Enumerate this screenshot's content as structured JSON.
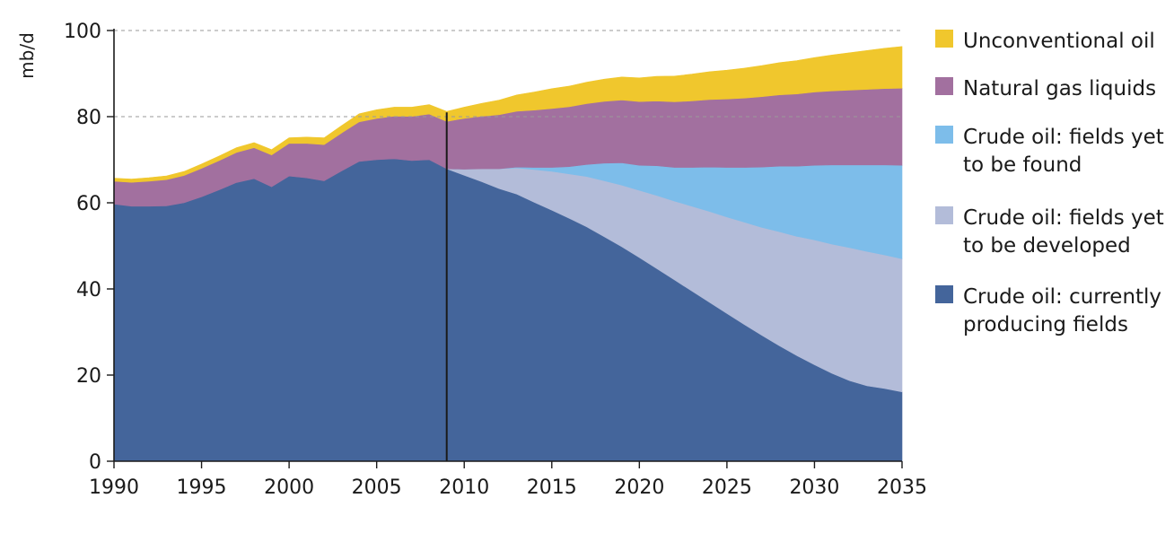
{
  "chart_data": {
    "type": "area",
    "stacked": true,
    "title": "",
    "xlabel": "",
    "ylabel": "mb/d",
    "xlim": [
      1990,
      2035
    ],
    "ylim": [
      0,
      100
    ],
    "x_ticks": [
      "1990",
      "1995",
      "2000",
      "2005",
      "2010",
      "2015",
      "2020",
      "2025",
      "2030",
      "2035"
    ],
    "y_ticks": [
      "0",
      "20",
      "40",
      "60",
      "80",
      "100"
    ],
    "gridlines_y": [
      80,
      100
    ],
    "marker_line_x": 2009,
    "legend_position": "right",
    "legend": [
      {
        "lines": [
          "Unconventional oil"
        ],
        "color": "#F0C72D"
      },
      {
        "lines": [
          "Natural gas liquids"
        ],
        "color": "#A2709F"
      },
      {
        "lines": [
          "Crude oil: fields yet",
          "to be found"
        ],
        "color": "#7DBDEA"
      },
      {
        "lines": [
          "Crude oil: fields yet",
          "to be developed"
        ],
        "color": "#B3BCD9"
      },
      {
        "lines": [
          "Crude oil: currently",
          "producing fields"
        ],
        "color": "#44659B"
      }
    ],
    "series": [
      {
        "name": "Crude oil: currently producing fields",
        "color": "#44659B",
        "points": [
          [
            1990,
            59.7
          ],
          [
            1991,
            59.2
          ],
          [
            1992,
            59.2
          ],
          [
            1993,
            59.3
          ],
          [
            1994,
            60.0
          ],
          [
            1995,
            61.4
          ],
          [
            1996,
            63.0
          ],
          [
            1997,
            64.7
          ],
          [
            1998,
            65.6
          ],
          [
            1999,
            63.7
          ],
          [
            2000,
            66.2
          ],
          [
            2001,
            65.8
          ],
          [
            2002,
            65.1
          ],
          [
            2003,
            67.4
          ],
          [
            2004,
            69.6
          ],
          [
            2005,
            70.0
          ],
          [
            2006,
            70.2
          ],
          [
            2007,
            69.8
          ],
          [
            2008,
            70.0
          ],
          [
            2009,
            67.9
          ],
          [
            2010,
            66.4
          ],
          [
            2011,
            64.9
          ],
          [
            2012,
            63.3
          ],
          [
            2013,
            62.0
          ],
          [
            2014,
            60.1
          ],
          [
            2015,
            58.3
          ],
          [
            2016,
            56.4
          ],
          [
            2017,
            54.4
          ],
          [
            2018,
            52.1
          ],
          [
            2019,
            49.8
          ],
          [
            2020,
            47.3
          ],
          [
            2021,
            44.7
          ],
          [
            2022,
            42.1
          ],
          [
            2023,
            39.5
          ],
          [
            2024,
            36.9
          ],
          [
            2025,
            34.3
          ],
          [
            2026,
            31.7
          ],
          [
            2027,
            29.2
          ],
          [
            2028,
            26.8
          ],
          [
            2029,
            24.5
          ],
          [
            2030,
            22.4
          ],
          [
            2031,
            20.4
          ],
          [
            2032,
            18.7
          ],
          [
            2033,
            17.5
          ],
          [
            2034,
            16.9
          ],
          [
            2035,
            16.1
          ]
        ]
      },
      {
        "name": "Crude oil: fields yet to be developed",
        "color": "#B3BCD9",
        "points": [
          [
            2009,
            0
          ],
          [
            2010,
            1.4
          ],
          [
            2011,
            3.0
          ],
          [
            2012,
            4.6
          ],
          [
            2013,
            6.1
          ],
          [
            2014,
            7.6
          ],
          [
            2015,
            9.0
          ],
          [
            2016,
            10.3
          ],
          [
            2017,
            11.7
          ],
          [
            2018,
            13.0
          ],
          [
            2019,
            14.3
          ],
          [
            2020,
            15.6
          ],
          [
            2021,
            17.0
          ],
          [
            2022,
            18.3
          ],
          [
            2023,
            19.7
          ],
          [
            2024,
            21.1
          ],
          [
            2025,
            22.4
          ],
          [
            2026,
            23.8
          ],
          [
            2027,
            25.1
          ],
          [
            2028,
            26.5
          ],
          [
            2029,
            27.7
          ],
          [
            2030,
            29.0
          ],
          [
            2031,
            30.0
          ],
          [
            2032,
            30.9
          ],
          [
            2033,
            31.2
          ],
          [
            2034,
            31.0
          ],
          [
            2035,
            30.9
          ]
        ]
      },
      {
        "name": "Crude oil: fields yet to be found",
        "color": "#7DBDEA",
        "points": [
          [
            2009,
            0
          ],
          [
            2012,
            0
          ],
          [
            2013,
            0.2
          ],
          [
            2014,
            0.5
          ],
          [
            2015,
            0.9
          ],
          [
            2016,
            1.7
          ],
          [
            2017,
            2.8
          ],
          [
            2018,
            4.1
          ],
          [
            2019,
            5.2
          ],
          [
            2020,
            5.8
          ],
          [
            2021,
            6.9
          ],
          [
            2022,
            7.8
          ],
          [
            2023,
            9.0
          ],
          [
            2024,
            10.3
          ],
          [
            2025,
            11.5
          ],
          [
            2026,
            12.7
          ],
          [
            2027,
            14.0
          ],
          [
            2028,
            15.2
          ],
          [
            2029,
            16.3
          ],
          [
            2030,
            17.3
          ],
          [
            2031,
            18.4
          ],
          [
            2032,
            19.2
          ],
          [
            2033,
            20.1
          ],
          [
            2034,
            20.9
          ],
          [
            2035,
            21.7
          ]
        ]
      },
      {
        "name": "Natural gas liquids",
        "color": "#A2709F",
        "points": [
          [
            1990,
            5.3
          ],
          [
            1995,
            6.6
          ],
          [
            2000,
            7.6
          ],
          [
            2005,
            9.6
          ],
          [
            2008,
            10.6
          ],
          [
            2009,
            11.0
          ],
          [
            2010,
            11.8
          ],
          [
            2015,
            13.7
          ],
          [
            2020,
            14.8
          ],
          [
            2025,
            15.9
          ],
          [
            2030,
            17.0
          ],
          [
            2035,
            17.9
          ]
        ]
      },
      {
        "name": "Unconventional oil",
        "color": "#F0C72D",
        "points": [
          [
            1990,
            0.7
          ],
          [
            1995,
            1.0
          ],
          [
            2000,
            1.3
          ],
          [
            2005,
            2.0
          ],
          [
            2008,
            2.2
          ],
          [
            2009,
            2.3
          ],
          [
            2010,
            2.6
          ],
          [
            2015,
            4.6
          ],
          [
            2020,
            5.5
          ],
          [
            2025,
            6.7
          ],
          [
            2030,
            8.0
          ],
          [
            2035,
            9.7
          ]
        ]
      }
    ]
  }
}
